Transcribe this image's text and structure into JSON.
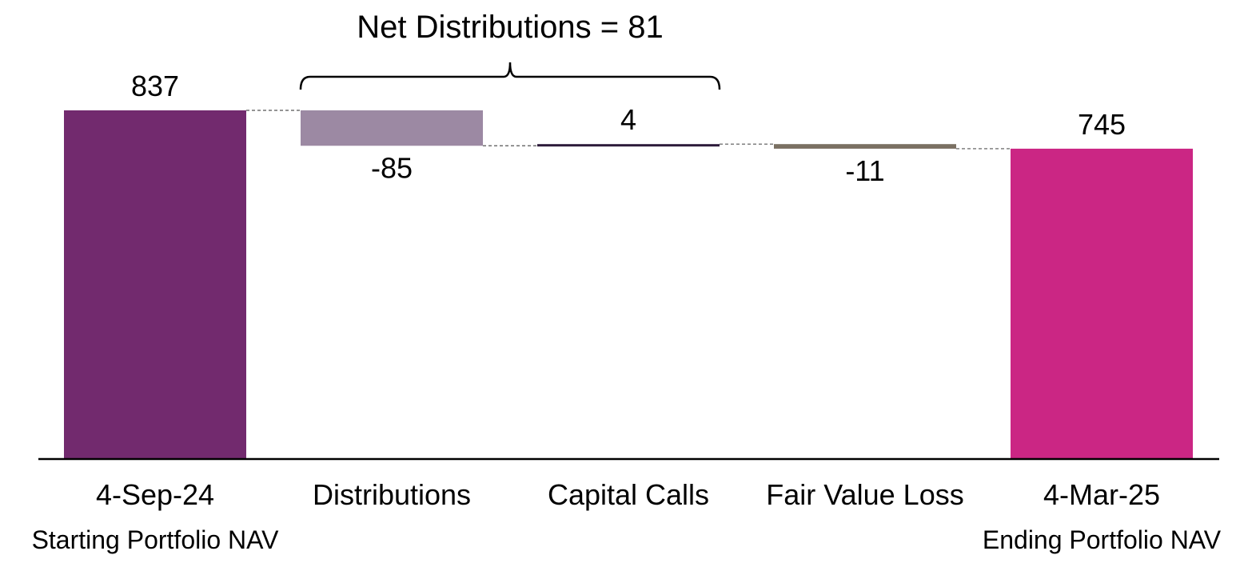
{
  "chart_data": {
    "type": "waterfall",
    "categories": [
      "4-Sep-24",
      "Distributions",
      "Capital Calls",
      "Fair Value Loss",
      "4-Mar-25"
    ],
    "subcategories": [
      "Starting Portfolio NAV",
      "",
      "",
      "",
      "Ending Portfolio NAV"
    ],
    "values": [
      837,
      -85,
      4,
      -11,
      745
    ],
    "value_labels": [
      "837",
      "-85",
      "4",
      "-11",
      "745"
    ],
    "kinds": [
      "total",
      "delta",
      "delta",
      "delta",
      "total"
    ],
    "colors": [
      "#722A6E",
      "#9C89A3",
      "#2C1A3A",
      "#7A7062",
      "#CB2684"
    ],
    "annotation": {
      "text": "Net Distributions = 81",
      "spans": [
        "Distributions",
        "Capital Calls"
      ]
    },
    "ylim": [
      0,
      837
    ],
    "grid": false
  }
}
